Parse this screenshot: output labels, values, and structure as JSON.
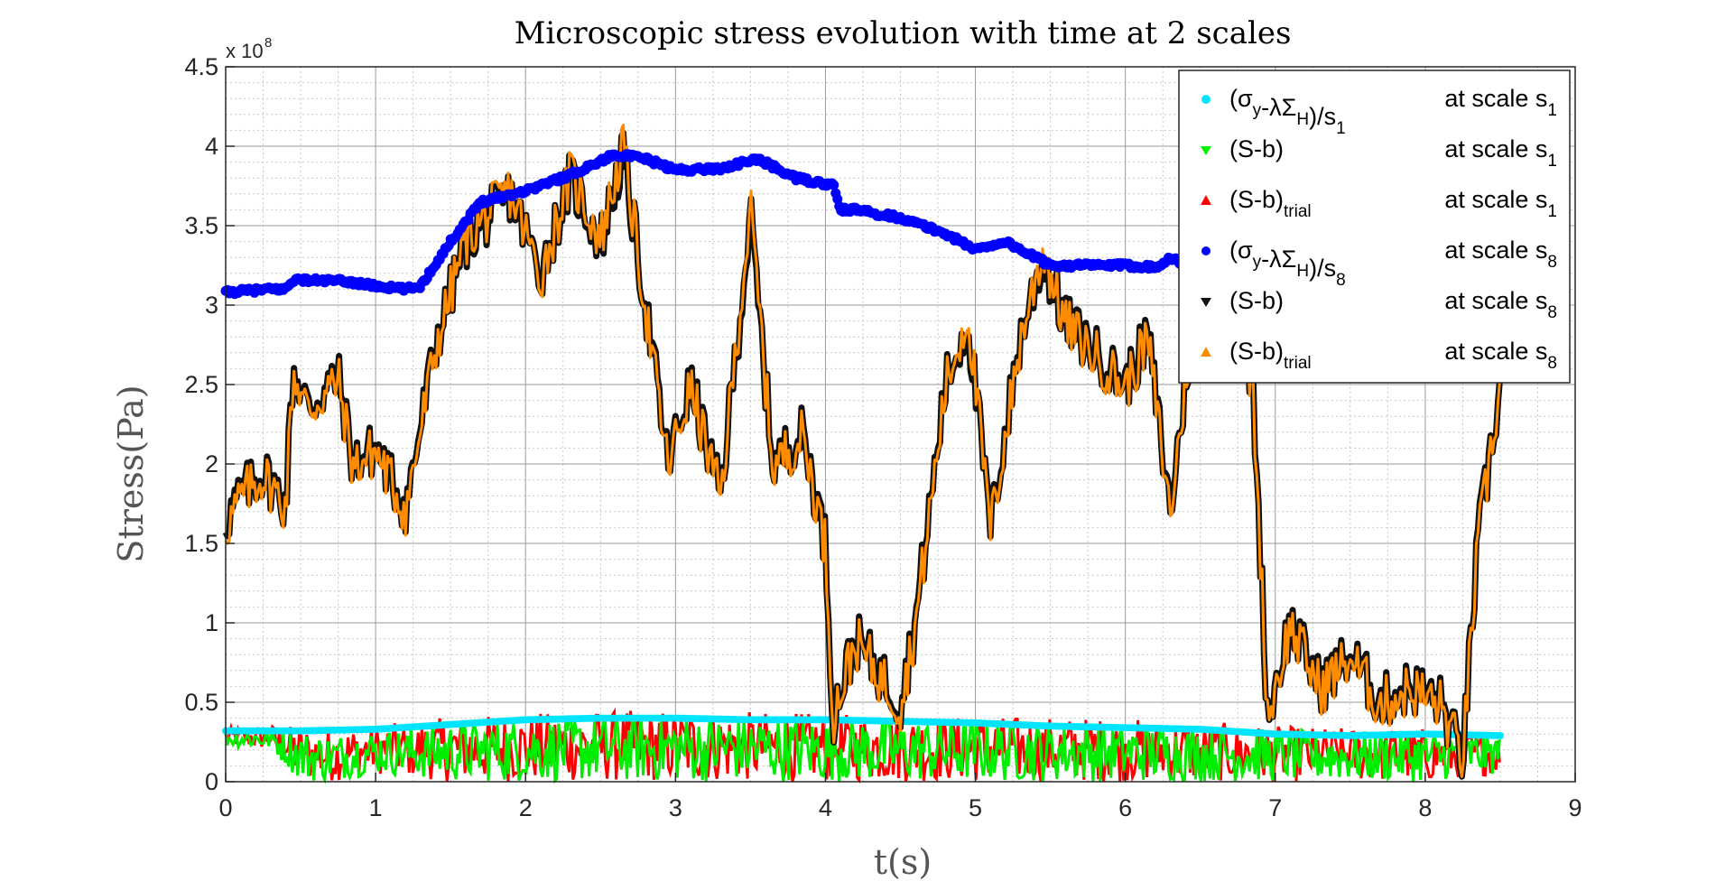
{
  "chart_data": {
    "type": "scatter",
    "title": "Microscopic stress evolution with time at 2 scales",
    "xlabel": "t(s)",
    "ylabel": "Stress(Pa)",
    "y_exponent_base": "x 10",
    "y_exponent_power": "8",
    "xlim": [
      0,
      9
    ],
    "ylim": [
      0,
      4.5
    ],
    "x_ticks": [
      "0",
      "1",
      "2",
      "3",
      "4",
      "5",
      "6",
      "7",
      "8",
      "9"
    ],
    "y_ticks": [
      "0",
      "0.5",
      "1",
      "1.5",
      "2",
      "2.5",
      "3",
      "3.5",
      "4",
      "4.5"
    ],
    "grid": true,
    "legend_position": "top-right",
    "units": "x10^8 Pa",
    "series": [
      {
        "name": "(σy-λΣH)/s1 at scale s1",
        "color": "#00e5ff",
        "marker": "dot",
        "x": [
          0,
          0.5,
          1.0,
          1.5,
          2.0,
          2.5,
          3.0,
          3.5,
          4.0,
          4.5,
          5.0,
          5.5,
          6.0,
          6.5,
          7.0,
          7.5,
          8.0,
          8.5
        ],
        "y": [
          0.32,
          0.32,
          0.33,
          0.36,
          0.39,
          0.4,
          0.4,
          0.39,
          0.39,
          0.38,
          0.37,
          0.35,
          0.34,
          0.33,
          0.3,
          0.29,
          0.3,
          0.29
        ]
      },
      {
        "name": "(S-b) at scale s1",
        "color": "#00ee00",
        "marker": "triangle-down",
        "x": [
          0,
          0.3,
          0.5,
          0.7,
          1.0,
          1.3,
          1.5,
          2.0,
          2.5,
          3.0,
          3.5,
          4.0,
          4.5,
          5.0,
          5.5,
          6.0,
          6.5,
          7.0,
          7.5,
          8.0,
          8.5
        ],
        "y": [
          0.28,
          0.3,
          0.05,
          0.1,
          0.2,
          0.3,
          0.2,
          0.22,
          0.22,
          0.22,
          0.22,
          0.2,
          0.2,
          0.2,
          0.2,
          0.18,
          0.18,
          0.16,
          0.16,
          0.14,
          0.15
        ],
        "y_low": [
          0.22,
          0.2,
          0.0,
          0.0,
          0.05,
          0.02,
          0.0,
          0.0,
          0.0,
          0.0,
          0.0,
          0.0,
          0.0,
          0.0,
          0.0,
          0.0,
          0.0,
          0.0,
          0.0,
          0.0,
          0.05
        ],
        "y_high": [
          0.32,
          0.34,
          0.32,
          0.3,
          0.33,
          0.34,
          0.38,
          0.4,
          0.42,
          0.42,
          0.42,
          0.4,
          0.4,
          0.39,
          0.38,
          0.37,
          0.36,
          0.33,
          0.32,
          0.32,
          0.3
        ]
      },
      {
        "name": "(S-b)trial at scale s1",
        "color": "#ff0000",
        "marker": "triangle-up",
        "x": [
          0,
          0.3,
          0.5,
          0.7,
          1.0,
          1.3,
          1.5,
          2.0,
          2.5,
          3.0,
          3.5,
          4.0,
          4.5,
          5.0,
          5.5,
          6.0,
          6.5,
          7.0,
          7.5,
          8.0,
          8.5
        ],
        "y": [
          0.3,
          0.32,
          0.08,
          0.12,
          0.22,
          0.32,
          0.22,
          0.24,
          0.24,
          0.24,
          0.24,
          0.22,
          0.22,
          0.22,
          0.22,
          0.2,
          0.2,
          0.18,
          0.18,
          0.16,
          0.17
        ],
        "y_low": [
          0.22,
          0.2,
          0.0,
          0.0,
          0.05,
          0.02,
          0.0,
          0.0,
          0.0,
          0.0,
          0.0,
          0.0,
          0.0,
          0.0,
          0.0,
          0.0,
          0.0,
          0.0,
          0.0,
          0.0,
          0.05
        ],
        "y_high": [
          0.34,
          0.36,
          0.35,
          0.33,
          0.36,
          0.38,
          0.41,
          0.43,
          0.45,
          0.45,
          0.44,
          0.43,
          0.42,
          0.41,
          0.41,
          0.4,
          0.38,
          0.35,
          0.34,
          0.34,
          0.31
        ]
      },
      {
        "name": "(σy-λΣH)/s8 at scale s8",
        "color": "#0000ff",
        "marker": "dot",
        "x": [
          0,
          0.3,
          0.4,
          0.45,
          0.8,
          1.0,
          1.2,
          1.3,
          1.5,
          1.7,
          2.0,
          2.3,
          2.6,
          2.8,
          3.0,
          3.3,
          3.55,
          3.8,
          4.0,
          4.05,
          4.1,
          4.2,
          4.5,
          4.8,
          5.0,
          5.2,
          5.4,
          5.5,
          6.0,
          6.2,
          6.3,
          6.4,
          6.6
        ],
        "y": [
          3.08,
          3.1,
          3.1,
          3.16,
          3.15,
          3.12,
          3.1,
          3.12,
          3.4,
          3.65,
          3.72,
          3.82,
          3.95,
          3.92,
          3.85,
          3.86,
          3.92,
          3.8,
          3.76,
          3.76,
          3.6,
          3.6,
          3.55,
          3.45,
          3.35,
          3.4,
          3.3,
          3.25,
          3.25,
          3.24,
          3.3,
          3.25,
          3.22
        ]
      },
      {
        "name": "(S-b) at scale s8",
        "color": "#111111",
        "marker": "triangle-down",
        "x": [
          0,
          0.1,
          0.25,
          0.4,
          0.45,
          0.55,
          0.75,
          0.85,
          1.0,
          1.2,
          1.4,
          1.6,
          1.9,
          2.1,
          2.3,
          2.5,
          2.65,
          2.8,
          2.95,
          3.1,
          3.3,
          3.5,
          3.65,
          3.85,
          4.0,
          4.05,
          4.2,
          4.35,
          4.5,
          4.6,
          4.8,
          4.95,
          5.1,
          5.3,
          5.45,
          5.6,
          5.8,
          6.0,
          6.15,
          6.3,
          6.5,
          6.7,
          6.85,
          6.95,
          7.1,
          7.3,
          7.5,
          7.7,
          7.9,
          8.1,
          8.25,
          8.35,
          8.5
        ],
        "y": [
          1.65,
          1.8,
          1.95,
          1.75,
          2.6,
          2.35,
          2.55,
          2.0,
          2.1,
          1.72,
          2.75,
          3.4,
          3.7,
          3.2,
          3.8,
          3.4,
          3.95,
          3.0,
          2.0,
          2.5,
          1.8,
          3.55,
          2.0,
          2.2,
          1.5,
          0.4,
          0.9,
          0.7,
          0.5,
          1.0,
          2.5,
          2.9,
          1.6,
          2.8,
          3.3,
          2.9,
          2.7,
          2.5,
          2.8,
          1.7,
          3.3,
          3.1,
          2.5,
          0.4,
          1.0,
          0.6,
          0.8,
          0.5,
          0.6,
          0.5,
          0.15,
          1.5,
          2.5
        ]
      },
      {
        "name": "(S-b)trial at scale s8",
        "color": "#ff8c00",
        "marker": "triangle-up",
        "x": [
          0,
          0.1,
          0.25,
          0.4,
          0.45,
          0.55,
          0.75,
          0.85,
          1.0,
          1.2,
          1.4,
          1.6,
          1.9,
          2.1,
          2.3,
          2.5,
          2.65,
          2.8,
          2.95,
          3.1,
          3.3,
          3.5,
          3.65,
          3.85,
          4.0,
          4.05,
          4.2,
          4.35,
          4.5,
          4.6,
          4.8,
          4.95,
          5.1,
          5.3,
          5.45,
          5.6,
          5.8,
          6.0,
          6.15,
          6.3,
          6.5,
          6.7,
          6.85,
          6.95,
          7.1,
          7.3,
          7.5,
          7.7,
          7.9,
          8.1,
          8.25,
          8.35,
          8.5
        ],
        "y": [
          1.6,
          1.78,
          1.93,
          1.73,
          2.58,
          2.33,
          2.53,
          1.98,
          2.08,
          1.7,
          2.73,
          3.42,
          3.72,
          3.18,
          3.82,
          3.42,
          4.0,
          2.98,
          1.98,
          2.48,
          1.78,
          3.6,
          1.98,
          2.18,
          1.48,
          0.4,
          0.88,
          0.68,
          0.48,
          0.98,
          2.48,
          2.95,
          1.58,
          2.78,
          3.35,
          2.88,
          2.68,
          2.48,
          2.78,
          1.68,
          3.32,
          3.08,
          2.48,
          0.4,
          0.98,
          0.58,
          0.78,
          0.48,
          0.58,
          0.48,
          0.15,
          1.48,
          2.5
        ]
      }
    ]
  },
  "legend": {
    "entries": [
      {
        "main": "(σ",
        "sub1": "y",
        "mid": "-λΣ",
        "sub2": "H",
        "tail": ")/s",
        "sub3": "1",
        "scale": "at scale s",
        "scale_sub": "1"
      },
      {
        "main": "(S-b)",
        "sub1": "",
        "mid": "",
        "sub2": "",
        "tail": "",
        "sub3": "",
        "scale": "at scale s",
        "scale_sub": "1"
      },
      {
        "main": "(S-b)",
        "sub1": "trial",
        "mid": "",
        "sub2": "",
        "tail": "",
        "sub3": "",
        "scale": "at scale s",
        "scale_sub": "1"
      },
      {
        "main": "(σ",
        "sub1": "y",
        "mid": "-λΣ",
        "sub2": "H",
        "tail": ")/s",
        "sub3": "8",
        "scale": "at scale s",
        "scale_sub": "8"
      },
      {
        "main": "(S-b)",
        "sub1": "",
        "mid": "",
        "sub2": "",
        "tail": "",
        "sub3": "",
        "scale": "at scale s",
        "scale_sub": "8"
      },
      {
        "main": "(S-b)",
        "sub1": "trial",
        "mid": "",
        "sub2": "",
        "tail": "",
        "sub3": "",
        "scale": "at scale s",
        "scale_sub": "8"
      }
    ]
  }
}
